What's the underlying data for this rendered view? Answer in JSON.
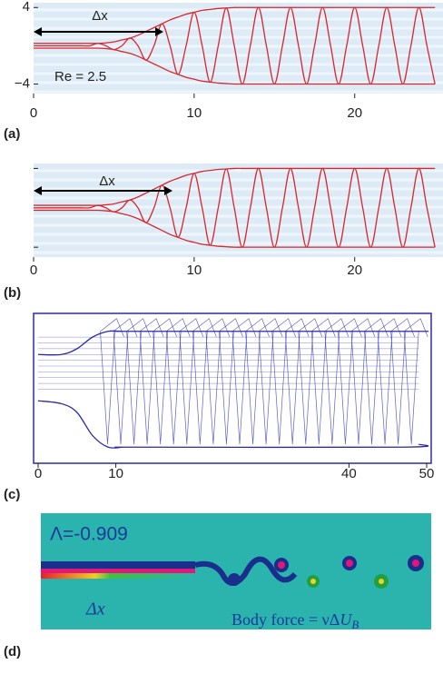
{
  "chart_data": [
    {
      "type": "line",
      "panel_label": "(a)",
      "delta_x_label": "Δx",
      "re_label": "Re = 2.5",
      "x": [
        0,
        0.5,
        1,
        1.5,
        2,
        2.5,
        3,
        3.5,
        4,
        4.5,
        5,
        5.5,
        6,
        6.5,
        7,
        7.5,
        8,
        8.5,
        9,
        9.5,
        10,
        10.5,
        11,
        11.5,
        12,
        12.5,
        13,
        13.5,
        14,
        14.5,
        15,
        15.5,
        16,
        16.5,
        17,
        17.5,
        18,
        18.5,
        19,
        19.5,
        20,
        20.5,
        21,
        21.5,
        22,
        22.5,
        23,
        23.5,
        24,
        24.5,
        25
      ],
      "series": [
        {
          "color": "#d8262e",
          "values": [
            0.25,
            0.25,
            0.25,
            0.25,
            0.25,
            0.25,
            0.25,
            0.25,
            0.25,
            0.3,
            0.4,
            0.6,
            0.8,
            1.1,
            1.5,
            1.9,
            2.3,
            2.7,
            3.0,
            3.3,
            3.5,
            3.7,
            3.8,
            3.9,
            3.95,
            4,
            4,
            4,
            4,
            4,
            4,
            4,
            4,
            4,
            4,
            4,
            4,
            4,
            4,
            4,
            4,
            4,
            4,
            4,
            4,
            4,
            4,
            4,
            4,
            4,
            4
          ]
        },
        {
          "color": "#d8262e",
          "values": [
            -0.25,
            -0.25,
            -0.25,
            -0.25,
            -0.25,
            -0.25,
            -0.25,
            -0.25,
            -0.25,
            -0.3,
            -0.4,
            -0.6,
            -0.8,
            -1.1,
            -1.5,
            -1.9,
            -2.3,
            -2.7,
            -3.0,
            -3.3,
            -3.5,
            -3.7,
            -3.8,
            -3.9,
            -3.95,
            -4,
            -4,
            -4,
            -4,
            -4,
            -4,
            -4,
            -4,
            -4,
            -4,
            -4,
            -4,
            -4,
            -4,
            -4,
            -4,
            -4,
            -4,
            -4,
            -4,
            -4,
            -4,
            -4,
            -4,
            -4,
            -4
          ]
        },
        {
          "color": "#d8262e",
          "values": [
            0,
            0,
            0,
            0,
            0,
            0,
            0,
            0,
            0.25,
            0,
            -0.4,
            0,
            0.8,
            0,
            -1.5,
            0,
            2.3,
            0,
            -3.0,
            0,
            3.5,
            0,
            -3.8,
            0,
            3.95,
            0,
            -4,
            0,
            4,
            0,
            -4,
            0,
            4,
            0,
            -4,
            0,
            4,
            0,
            -4,
            0,
            4,
            0,
            -4,
            0,
            4,
            0,
            -4,
            0,
            4,
            0,
            -4
          ]
        }
      ],
      "xlim": [
        0,
        25.5
      ],
      "ylim": [
        -5,
        4.5
      ],
      "xticks": [
        0,
        10,
        20
      ],
      "yticks": [
        {
          "value": 4,
          "label": "4"
        },
        {
          "value": -4,
          "label": "−4"
        }
      ],
      "ytick_labels": true
    },
    {
      "type": "line",
      "panel_label": "(b)",
      "delta_x_label": "Δx",
      "x": [
        0,
        0.5,
        1,
        1.5,
        2,
        2.5,
        3,
        3.5,
        4,
        4.5,
        5,
        5.5,
        6,
        6.5,
        7,
        7.5,
        8,
        8.5,
        9,
        9.5,
        10,
        10.5,
        11,
        11.5,
        12,
        12.5,
        13,
        13.5,
        14,
        14.5,
        15,
        15.5,
        16,
        16.5,
        17,
        17.5,
        18,
        18.5,
        19,
        19.5,
        20,
        20.5,
        21,
        21.5,
        22,
        22.5,
        23,
        23.5,
        24,
        24.5,
        25
      ],
      "series": [
        {
          "color": "#d8262e",
          "values": [
            0.25,
            0.25,
            0.25,
            0.25,
            0.25,
            0.25,
            0.25,
            0.25,
            0.25,
            0.3,
            0.4,
            0.6,
            0.8,
            1.1,
            1.5,
            1.9,
            2.3,
            2.7,
            3.0,
            3.3,
            3.5,
            3.7,
            3.8,
            3.9,
            3.95,
            4,
            4,
            4,
            4,
            4,
            4,
            4,
            4,
            4,
            4,
            4,
            4,
            4,
            4,
            4,
            4,
            4,
            4,
            4,
            4,
            4,
            4,
            4,
            4,
            4,
            4
          ]
        },
        {
          "color": "#d8262e",
          "values": [
            -0.25,
            -0.25,
            -0.25,
            -0.25,
            -0.25,
            -0.25,
            -0.25,
            -0.25,
            -0.25,
            -0.3,
            -0.4,
            -0.6,
            -0.8,
            -1.1,
            -1.5,
            -1.9,
            -2.3,
            -2.7,
            -3.0,
            -3.3,
            -3.5,
            -3.7,
            -3.8,
            -3.9,
            -3.95,
            -4,
            -4,
            -4,
            -4,
            -4,
            -4,
            -4,
            -4,
            -4,
            -4,
            -4,
            -4,
            -4,
            -4,
            -4,
            -4,
            -4,
            -4,
            -4,
            -4,
            -4,
            -4,
            -4,
            -4,
            -4,
            -4
          ]
        },
        {
          "color": "#d8262e",
          "values": [
            0,
            0,
            0,
            0,
            0,
            0,
            0,
            0,
            0.25,
            0,
            -0.4,
            0,
            0.8,
            0,
            -1.5,
            0,
            2.3,
            0,
            -3.0,
            0,
            3.5,
            0,
            -3.8,
            0,
            3.95,
            0,
            -4,
            0,
            4,
            0,
            -4,
            0,
            4,
            0,
            -4,
            0,
            4,
            0,
            -4,
            0,
            4,
            0,
            -4,
            0,
            4,
            0,
            -4,
            0,
            4,
            0,
            -4
          ]
        }
      ],
      "xlim": [
        0,
        25.5
      ],
      "ylim": [
        -5,
        4.5
      ],
      "xticks": [
        0,
        10,
        20
      ],
      "yticks": [
        4,
        -4
      ],
      "ytick_labels": false
    },
    {
      "type": "line",
      "panel_label": "(c)",
      "x": [
        0,
        3,
        5,
        7,
        9,
        11,
        13,
        47,
        49
      ],
      "series": [
        {
          "color": "#2a2aa8",
          "values": [
            0.6,
            0.6,
            0.7,
            0.9,
            1,
            1,
            1,
            1,
            1
          ]
        },
        {
          "color": "#2a2aa8",
          "values": [
            -0.2,
            -0.25,
            -0.4,
            -0.8,
            -1,
            -1,
            -1,
            -1,
            -0.95
          ]
        }
      ],
      "xlim": [
        0,
        50
      ],
      "ylim": [
        -1.2,
        1.2
      ],
      "xticks": [
        0,
        10,
        40,
        50
      ]
    }
  ],
  "figure_d": {
    "panel_label": "(d)",
    "lambda_label": "Λ=-0.909",
    "delta_x_label": "Δx",
    "body_force_label": "Body force = νΔ",
    "body_force_symbol": "U",
    "body_force_subscript": "B"
  }
}
